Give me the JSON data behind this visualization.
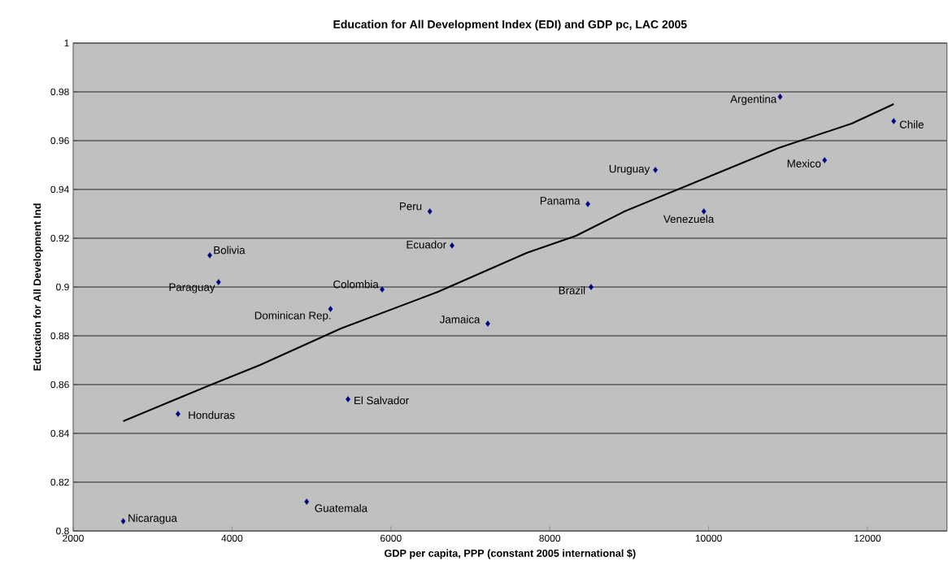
{
  "chart_data": {
    "type": "scatter",
    "title": "Education for All Development Index (EDI) and GDP pc, LAC 2005",
    "xlabel": "GDP per capita, PPP (constant 2005 international $)",
    "ylabel": "Education for All Development Ind",
    "xlim": [
      2000,
      13000
    ],
    "ylim": [
      0.8,
      1
    ],
    "xticks": [
      2000,
      4000,
      6000,
      8000,
      10000,
      12000
    ],
    "yticks": [
      0.8,
      0.82,
      0.84,
      0.86,
      0.88,
      0.9,
      0.92,
      0.94,
      0.96,
      0.98,
      1
    ],
    "grid": "y",
    "series": [
      {
        "color": "#000080",
        "marker": "diamond",
        "x": [
          10900,
          12330,
          11460,
          9330,
          9940,
          8480,
          8520,
          6490,
          6770,
          5890,
          7220,
          5240,
          3720,
          3830,
          3320,
          5460,
          4940,
          2630
        ],
        "values": [
          0.978,
          0.968,
          0.952,
          0.948,
          0.931,
          0.934,
          0.9,
          0.931,
          0.917,
          0.899,
          0.885,
          0.891,
          0.913,
          0.902,
          0.848,
          0.854,
          0.812,
          0.804
        ]
      },
      {
        "type": "line",
        "color": "#000000",
        "marker": "none",
        "x": [
          2630,
          3220,
          3740,
          4350,
          5370,
          6590,
          7710,
          8330,
          8940,
          10060,
          10880,
          11800,
          12330
        ],
        "values": [
          0.845,
          0.853,
          0.86,
          0.868,
          0.883,
          0.898,
          0.914,
          0.921,
          0.931,
          0.946,
          0.957,
          0.967,
          0.975
        ]
      }
    ],
    "annotations": [
      {
        "text": "Argentina",
        "x": 10900,
        "y": 0.978
      },
      {
        "text": "Chile",
        "x": 12330,
        "y": 0.968
      },
      {
        "text": "Mexico",
        "x": 11460,
        "y": 0.952
      },
      {
        "text": "Uruguay",
        "x": 9330,
        "y": 0.948
      },
      {
        "text": "Venezuela",
        "x": 9940,
        "y": 0.931
      },
      {
        "text": "Panama",
        "x": 8480,
        "y": 0.934
      },
      {
        "text": "Brazil",
        "x": 8520,
        "y": 0.9
      },
      {
        "text": "Peru",
        "x": 6490,
        "y": 0.931
      },
      {
        "text": "Ecuador",
        "x": 6770,
        "y": 0.917
      },
      {
        "text": "Colombia",
        "x": 5890,
        "y": 0.899
      },
      {
        "text": "Jamaica",
        "x": 7220,
        "y": 0.885
      },
      {
        "text": "Dominican Rep.",
        "x": 5240,
        "y": 0.891
      },
      {
        "text": "Bolivia",
        "x": 3720,
        "y": 0.913
      },
      {
        "text": "Paraguay",
        "x": 3830,
        "y": 0.902
      },
      {
        "text": "Honduras",
        "x": 3320,
        "y": 0.848
      },
      {
        "text": "El Salvador",
        "x": 5460,
        "y": 0.854
      },
      {
        "text": "Guatemala",
        "x": 4940,
        "y": 0.812
      },
      {
        "text": "Nicaragua",
        "x": 2630,
        "y": 0.804
      }
    ]
  }
}
